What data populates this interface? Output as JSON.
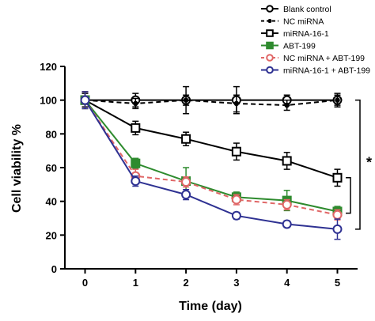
{
  "chart_data": {
    "type": "line",
    "xlabel": "Time (day)",
    "ylabel": "Cell viability %",
    "x": [
      0,
      1,
      2,
      3,
      4,
      5
    ],
    "xlim": [
      -0.4,
      5.4
    ],
    "ylim": [
      0,
      120
    ],
    "xticks": [
      "0",
      "1",
      "2",
      "3",
      "4",
      "5"
    ],
    "yticks": [
      "0",
      "20",
      "40",
      "60",
      "80",
      "100",
      "120"
    ],
    "legend_position": "top-right",
    "series": [
      {
        "name": "Blank control",
        "color": "#000000",
        "marker": "circle",
        "dash": "solid",
        "fill": "none",
        "values": [
          100,
          100,
          100,
          100,
          100,
          100
        ],
        "errors": [
          4,
          4,
          8,
          8,
          3,
          4
        ]
      },
      {
        "name": "NC miRNA",
        "color": "#000000",
        "marker": "dot",
        "dash": "dashed",
        "fill": "#000000",
        "values": [
          100,
          98,
          100,
          98,
          97,
          100
        ],
        "errors": [
          5,
          3,
          3,
          5,
          3,
          3
        ]
      },
      {
        "name": "miRNA-16-1",
        "color": "#000000",
        "marker": "square",
        "dash": "solid",
        "fill": "none",
        "values": [
          100,
          83.5,
          77,
          69.5,
          64,
          54
        ],
        "errors": [
          5,
          4,
          4,
          5,
          5,
          5
        ]
      },
      {
        "name": "ABT-199",
        "color": "#2e8b2e",
        "marker": "square",
        "dash": "solid",
        "fill": "#2e8b2e",
        "values": [
          100,
          62.5,
          52,
          42.5,
          40.5,
          34
        ],
        "errors": [
          5,
          3,
          8,
          3,
          6,
          3
        ]
      },
      {
        "name": "NC miRNA + ABT-199",
        "color": "#e06666",
        "marker": "circle",
        "dash": "dashed",
        "fill": "none",
        "values": [
          100,
          55,
          51.5,
          41,
          38,
          32
        ],
        "errors": [
          5,
          4,
          3,
          3,
          3,
          3
        ]
      },
      {
        "name": "miRNA-16-1 + ABT-199",
        "color": "#2e3192",
        "marker": "circle",
        "dash": "solid",
        "fill": "none",
        "values": [
          100,
          52,
          44,
          31.5,
          26.5,
          23.5
        ],
        "errors": [
          5,
          3,
          3,
          2,
          2,
          6
        ]
      }
    ],
    "annotations": [
      "*"
    ]
  }
}
